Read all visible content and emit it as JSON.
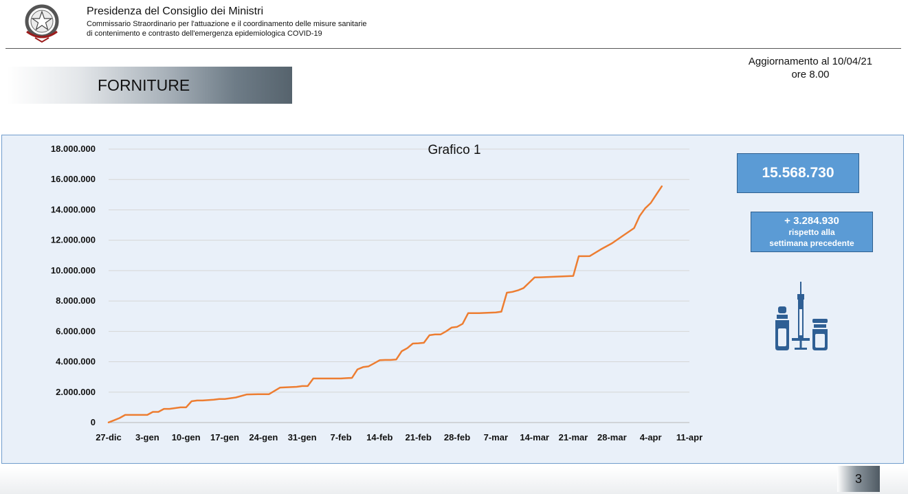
{
  "header": {
    "title": "Presidenza del Consiglio dei Ministri",
    "subtitle_line1": "Commissario Straordinario  per l'attuazione e il coordinamento delle misure sanitarie",
    "subtitle_line2": "di contenimento e contrasto dell'emergenza epidemiologica COVID-19",
    "emblem_icon": "italian-republic-emblem-icon"
  },
  "update": {
    "line1": "Aggiornamento al 10/04/21",
    "line2": "ore 8.00"
  },
  "section_title": "FORNITURE",
  "stats": {
    "total": "15.568.730",
    "delta_value": "+ 3.284.930",
    "delta_line1": "rispetto alla",
    "delta_line2": "settimana precedente",
    "box_color": "#5b9bd5"
  },
  "icons": {
    "vaccine": "vaccine-syringe-vials-icon"
  },
  "page_number": "3",
  "chart_data": {
    "type": "line",
    "title": "Grafico 1",
    "xlabel": "",
    "ylabel": "",
    "ylim": [
      0,
      18000000
    ],
    "y_ticks": [
      0,
      2000000,
      4000000,
      6000000,
      8000000,
      10000000,
      12000000,
      14000000,
      16000000,
      18000000
    ],
    "y_tick_labels": [
      "0",
      "2.000.000",
      "4.000.000",
      "6.000.000",
      "8.000.000",
      "10.000.000",
      "12.000.000",
      "14.000.000",
      "16.000.000",
      "18.000.000"
    ],
    "x_tick_labels": [
      "27-dic",
      "3-gen",
      "10-gen",
      "17-gen",
      "24-gen",
      "31-gen",
      "7-feb",
      "14-feb",
      "21-feb",
      "28-feb",
      "7-mar",
      "14-mar",
      "21-mar",
      "28-mar",
      "4-apr",
      "11-apr"
    ],
    "x_range": [
      "27-dic",
      "11-apr"
    ],
    "grid": true,
    "legend": "none",
    "line_color": "#ed7d31",
    "series": [
      {
        "x": [
          "27-dic",
          "28-dic",
          "29-dic",
          "30-dic",
          "31-dic",
          "1-gen",
          "2-gen",
          "3-gen",
          "4-gen",
          "5-gen",
          "6-gen",
          "7-gen",
          "8-gen",
          "9-gen",
          "10-gen",
          "11-gen",
          "12-gen",
          "13-gen",
          "15-gen",
          "16-gen",
          "17-gen",
          "19-gen",
          "21-gen",
          "23-gen",
          "24-gen",
          "25-gen",
          "27-gen",
          "28-gen",
          "30-gen",
          "31-gen",
          "1-feb",
          "2-feb",
          "3-feb",
          "5-feb",
          "7-feb",
          "8-feb",
          "9-feb",
          "10-feb",
          "11-feb",
          "12-feb",
          "13-feb",
          "14-feb",
          "15-feb",
          "16-feb",
          "17-feb",
          "18-feb",
          "19-feb",
          "20-feb",
          "21-feb",
          "22-feb",
          "23-feb",
          "24-feb",
          "25-feb",
          "26-feb",
          "27-feb",
          "28-feb",
          "1-mar",
          "2-mar",
          "3-mar",
          "4-mar",
          "7-mar",
          "8-mar",
          "9-mar",
          "10-mar",
          "11-mar",
          "12-mar",
          "13-mar",
          "14-mar",
          "15-mar",
          "21-mar",
          "22-mar",
          "23-mar",
          "24-mar",
          "26-mar",
          "28-mar",
          "30-mar",
          "1-apr",
          "2-apr",
          "3-apr",
          "4-apr",
          "5-apr",
          "6-apr"
        ],
        "values": [
          10000,
          150000,
          300000,
          500000,
          500000,
          500000,
          500000,
          500000,
          700000,
          700000,
          900000,
          900000,
          950000,
          1000000,
          1000000,
          1400000,
          1450000,
          1450000,
          1500000,
          1550000,
          1550000,
          1650000,
          1850000,
          1870000,
          1870000,
          1870000,
          2300000,
          2320000,
          2350000,
          2400000,
          2400000,
          2900000,
          2900000,
          2900000,
          2900000,
          2920000,
          2940000,
          3500000,
          3650000,
          3700000,
          3900000,
          4100000,
          4120000,
          4120000,
          4150000,
          4700000,
          4900000,
          5200000,
          5220000,
          5250000,
          5750000,
          5800000,
          5800000,
          6000000,
          6250000,
          6300000,
          6500000,
          7200000,
          7200000,
          7200000,
          7250000,
          7300000,
          8550000,
          8600000,
          8700000,
          8850000,
          9200000,
          9550000,
          9560000,
          9650000,
          10950000,
          10950000,
          10960000,
          11400000,
          11800000,
          12300000,
          12800000,
          13600000,
          14100000,
          14450000,
          15000000,
          15550000
        ]
      }
    ]
  }
}
